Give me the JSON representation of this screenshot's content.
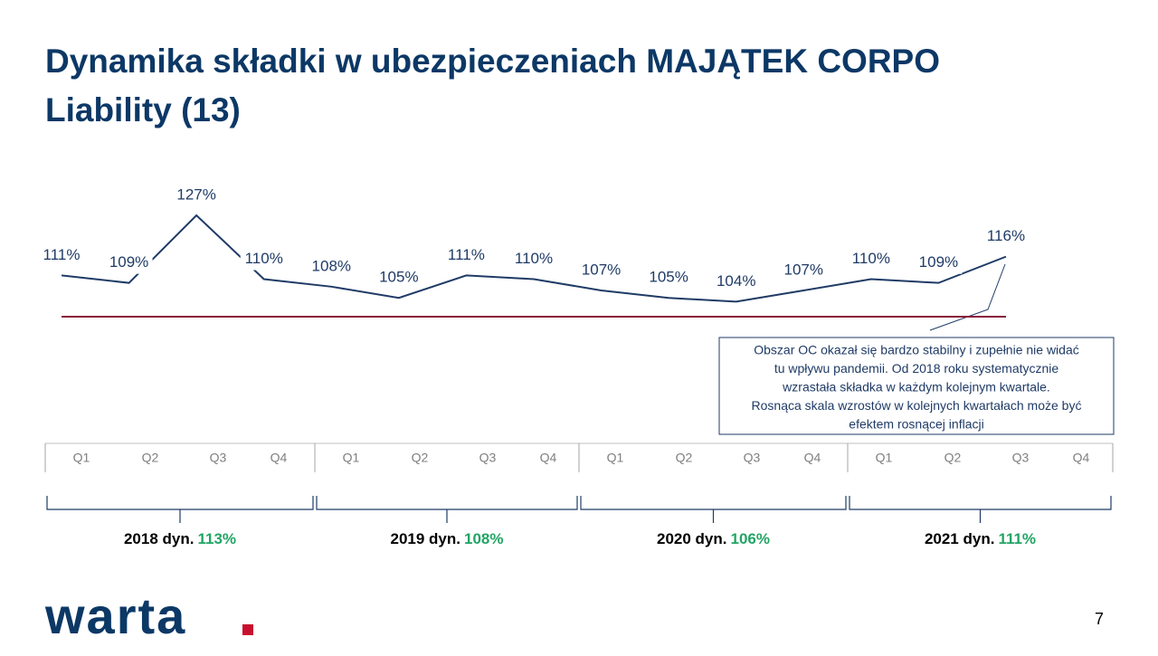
{
  "title": "Dynamika składki w ubezpieczeniach MAJĄTEK CORPO Liability (13)",
  "chart_data": {
    "type": "line",
    "categories": [
      "Q1",
      "Q2",
      "Q3",
      "Q4",
      "Q1",
      "Q2",
      "Q3",
      "Q4",
      "Q1",
      "Q2",
      "Q3",
      "Q4",
      "Q1",
      "Q2",
      "Q3",
      "Q4"
    ],
    "series": [
      {
        "color": "#1f3b66",
        "values": [
          111,
          109,
          127,
          110,
          108,
          105,
          111,
          110,
          107,
          105,
          104,
          107,
          110,
          109,
          116,
          null
        ],
        "value_labels": [
          "111%",
          "109%",
          "127%",
          "110%",
          "108%",
          "105%",
          "111%",
          "110%",
          "107%",
          "105%",
          "104%",
          "107%",
          "110%",
          "109%",
          "116%",
          null
        ]
      }
    ],
    "ylim": [
      100,
      127
    ],
    "reference_line": {
      "value": 100,
      "color": "#8b1a3a"
    },
    "years": [
      {
        "label": "2018 dyn.",
        "dynamic": "113%"
      },
      {
        "label": "2019 dyn.",
        "dynamic": "108%"
      },
      {
        "label": "2020 dyn.",
        "dynamic": "106%"
      },
      {
        "label": "2021 dyn.",
        "dynamic": "111%"
      }
    ],
    "annotation": [
      "Obszar OC okazał się bardzo stabilny i zupełnie nie widać",
      "tu wpływu pandemii. Od 2018 roku systematycznie",
      "wzrastała składka w każdym kolejnym kwartale.",
      "Rosnąca skala wzrostów w kolejnych kwartałach może być",
      "efektem rosnącej inflacji"
    ]
  },
  "logo": "warta",
  "page_number": "7"
}
